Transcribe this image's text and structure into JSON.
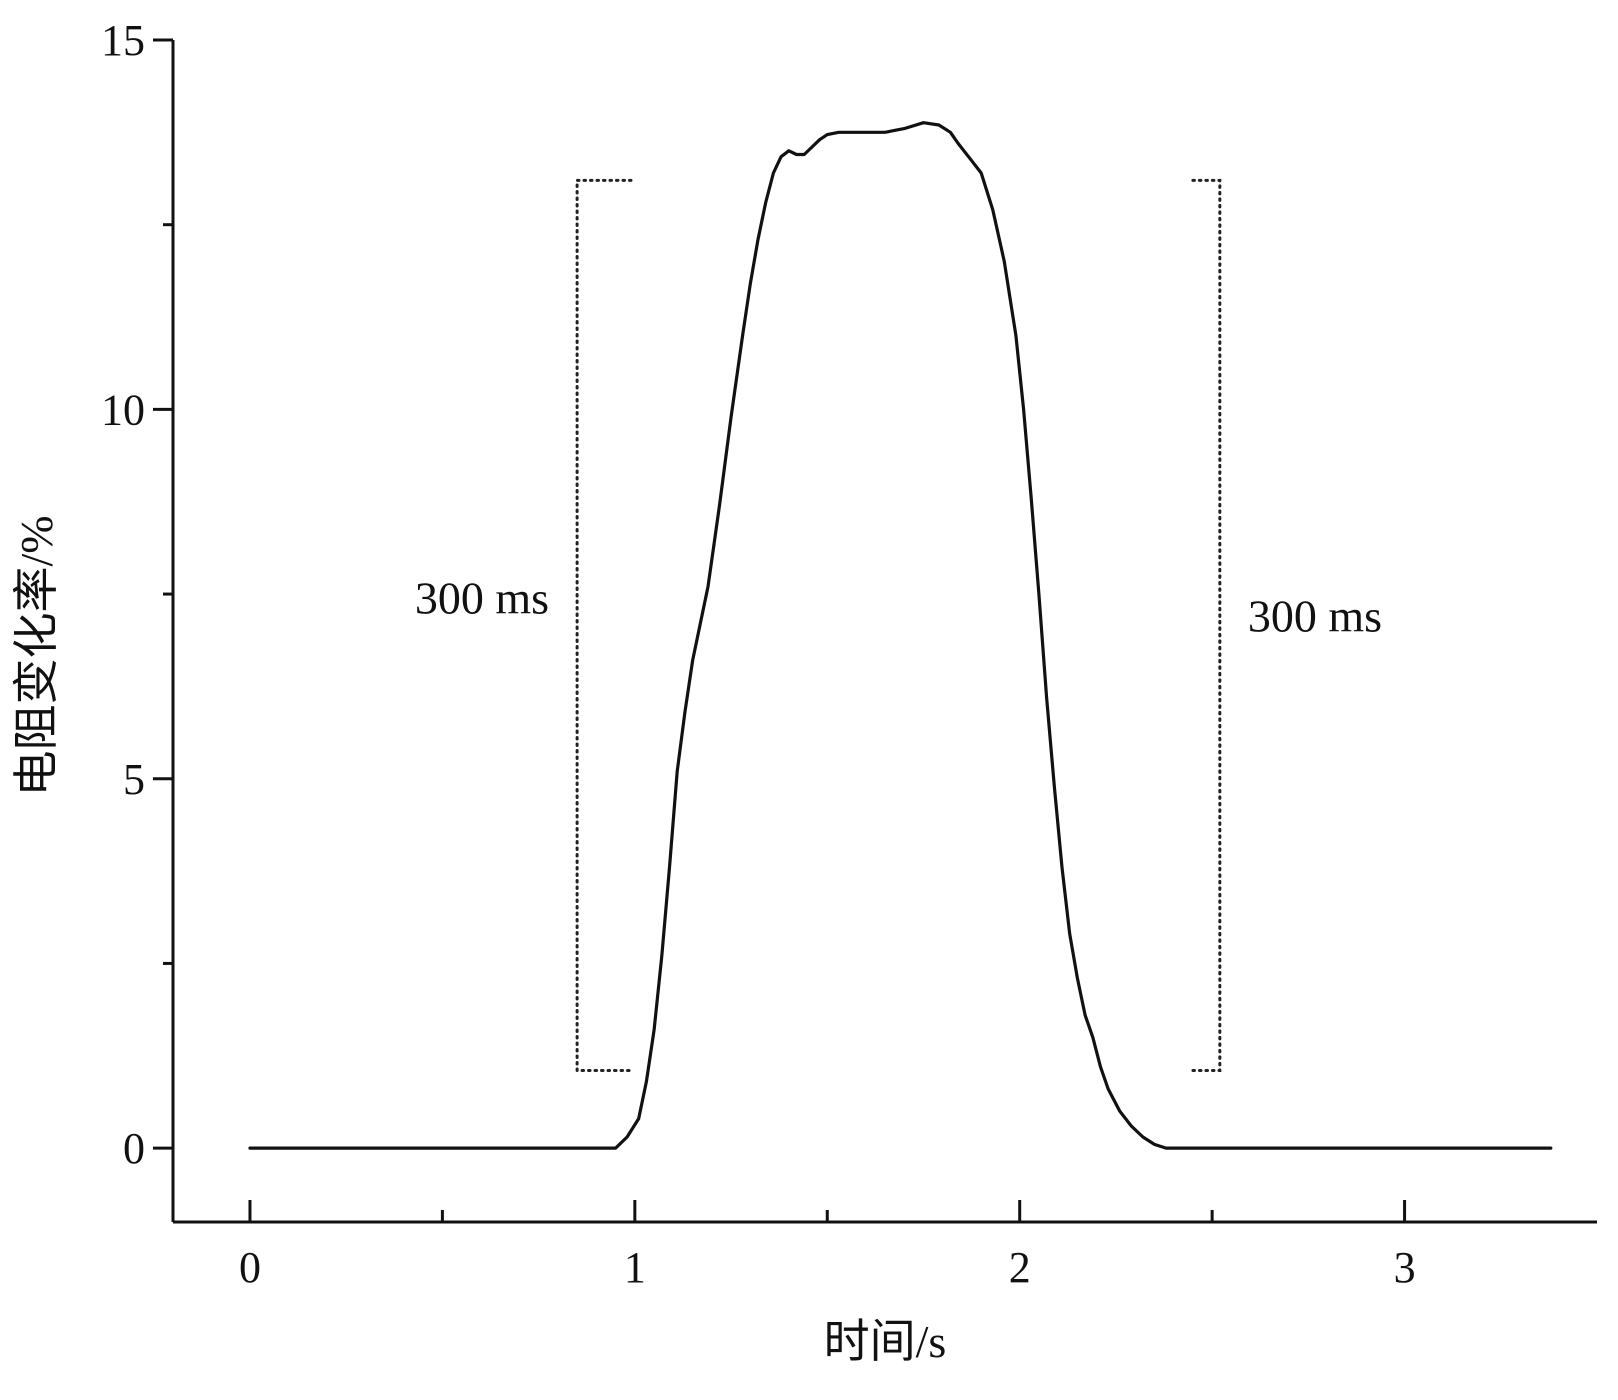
{
  "chart_data": {
    "type": "line",
    "title": "",
    "xlabel": "时间/s",
    "ylabel": "电阻变化率/%",
    "xlim": [
      -0.2,
      3.5
    ],
    "ylim": [
      -1,
      15
    ],
    "x_ticks": [
      0,
      1,
      2,
      3
    ],
    "x_tick_labels": [
      "0",
      "1",
      "2",
      "3"
    ],
    "x_minor_ticks": [
      0.5,
      1.5,
      2.5
    ],
    "y_ticks": [
      0,
      5,
      10,
      15
    ],
    "y_tick_labels": [
      "0",
      "5",
      "10",
      "15"
    ],
    "y_minor_ticks": [
      2.5,
      7.5,
      12.5
    ],
    "grid": false,
    "legend": "none",
    "series": [
      {
        "color": "#111111",
        "x": [
          0,
          0.5,
          0.95,
          0.98,
          1.01,
          1.03,
          1.05,
          1.07,
          1.09,
          1.11,
          1.13,
          1.15,
          1.17,
          1.19,
          1.22,
          1.25,
          1.28,
          1.3,
          1.32,
          1.34,
          1.36,
          1.38,
          1.4,
          1.42,
          1.44,
          1.46,
          1.48,
          1.5,
          1.53,
          1.57,
          1.61,
          1.65,
          1.7,
          1.75,
          1.79,
          1.82,
          1.84,
          1.87,
          1.9,
          1.93,
          1.96,
          1.99,
          2.01,
          2.03,
          2.05,
          2.07,
          2.09,
          2.11,
          2.13,
          2.15,
          2.17,
          2.19,
          2.21,
          2.23,
          2.26,
          2.29,
          2.32,
          2.35,
          2.38,
          2.41,
          2.44,
          2.47,
          2.6,
          3.0,
          3.38
        ],
        "y": [
          0,
          0,
          0,
          0.15,
          0.4,
          0.9,
          1.6,
          2.6,
          3.8,
          5.1,
          5.9,
          6.6,
          7.1,
          7.6,
          8.7,
          9.9,
          11.0,
          11.7,
          12.3,
          12.8,
          13.2,
          13.42,
          13.5,
          13.45,
          13.45,
          13.55,
          13.65,
          13.72,
          13.75,
          13.75,
          13.75,
          13.75,
          13.8,
          13.88,
          13.85,
          13.75,
          13.6,
          13.4,
          13.2,
          12.7,
          12.0,
          11.0,
          10.0,
          8.8,
          7.5,
          6.1,
          4.9,
          3.8,
          2.9,
          2.3,
          1.8,
          1.5,
          1.1,
          0.8,
          0.5,
          0.3,
          0.15,
          0.05,
          0,
          0,
          0,
          0,
          0,
          0,
          0
        ]
      }
    ],
    "annotations": [
      {
        "text": "300 ms",
        "side": "left",
        "bracket_x": 0.85,
        "bracket_end_x": 0.99,
        "y_top": 13.1,
        "y_bottom": 1.05
      },
      {
        "text": "300 ms",
        "side": "right",
        "bracket_x": 2.52,
        "bracket_end_x": 2.45,
        "y_top": 13.1,
        "y_bottom": 1.05
      }
    ]
  }
}
